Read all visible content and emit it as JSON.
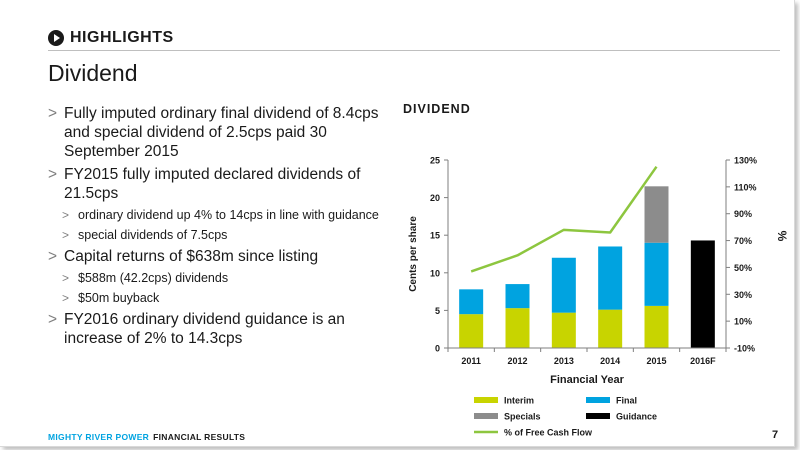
{
  "header": {
    "section_title": "HIGHLIGHTS",
    "page_title": "Dividend"
  },
  "bullets": [
    {
      "text": "Fully imputed ordinary final dividend of 8.4cps and special dividend of 2.5cps paid 30 September 2015",
      "sub": []
    },
    {
      "text": "FY2015 fully imputed declared dividends of 21.5cps",
      "sub": [
        "ordinary dividend up 4% to 14cps in line with guidance",
        "special dividends of 7.5cps"
      ]
    },
    {
      "text": "Capital returns of $638m since listing",
      "sub": [
        "$588m (42.2cps) dividends",
        "$50m buyback"
      ]
    },
    {
      "text": "FY2016 ordinary dividend guidance is an increase of 2% to 14.3cps",
      "sub": []
    }
  ],
  "footer": {
    "brand": "MIGHTY RIVER POWER",
    "label": "FINANCIAL RESULTS",
    "page_number": "7"
  },
  "colors": {
    "interim": "#c8d400",
    "final": "#00a3e0",
    "specials": "#8c8c8c",
    "guidance": "#000000",
    "fcf_line": "#8dc63f",
    "brand": "#00a3e0"
  },
  "chart_data": {
    "type": "bar",
    "stacked": true,
    "title": "DIVIDEND",
    "xlabel": "Financial Year",
    "ylabel": "Cents per share",
    "y2label": "%",
    "categories": [
      "2011",
      "2012",
      "2013",
      "2014",
      "2015",
      "2016F"
    ],
    "ylim": [
      0,
      25
    ],
    "yticks": [
      0,
      5,
      10,
      15,
      20,
      25
    ],
    "y2lim": [
      -10,
      130
    ],
    "y2ticks": [
      "-10%",
      "10%",
      "30%",
      "50%",
      "70%",
      "90%",
      "110%",
      "130%"
    ],
    "grid": false,
    "legend_position": "bottom",
    "series": [
      {
        "name": "Interim",
        "kind": "bar",
        "values": [
          4.5,
          5.3,
          4.7,
          5.1,
          5.6,
          null
        ]
      },
      {
        "name": "Final",
        "kind": "bar",
        "values": [
          3.3,
          3.2,
          7.3,
          8.4,
          8.4,
          null
        ]
      },
      {
        "name": "Specials",
        "kind": "bar",
        "values": [
          null,
          null,
          null,
          null,
          7.5,
          null
        ]
      },
      {
        "name": "Guidance",
        "kind": "bar",
        "values": [
          null,
          null,
          null,
          null,
          null,
          14.3
        ]
      },
      {
        "name": "% of Free Cash Flow",
        "kind": "line",
        "axis": "right",
        "values": [
          47,
          59,
          78,
          76,
          125,
          null
        ]
      }
    ]
  }
}
